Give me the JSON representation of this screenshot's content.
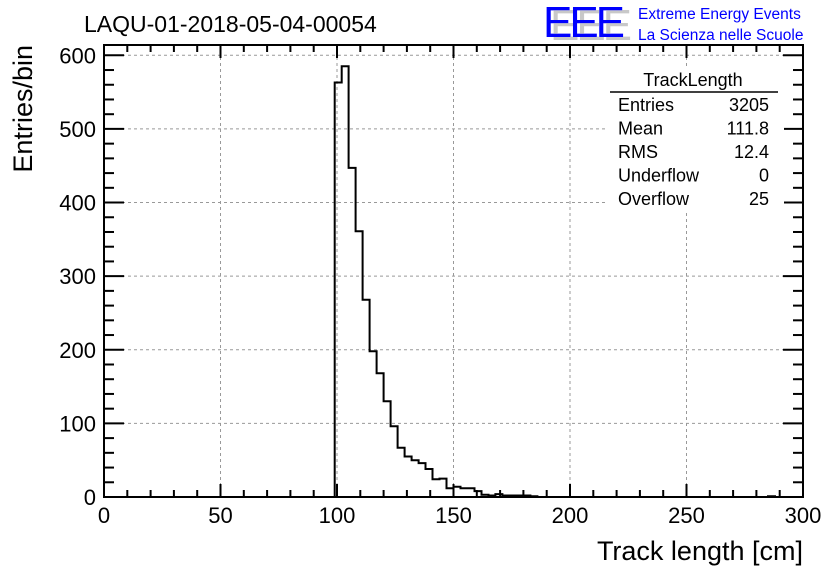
{
  "chart_data": {
    "type": "bar",
    "title": "LAQU-01-2018-05-04-00054",
    "xlabel": "Track length [cm]",
    "ylabel": "Entries/bin",
    "xlim": [
      0,
      300
    ],
    "ylim": [
      0,
      614
    ],
    "bin_width": 3,
    "grid": true,
    "xticks": [
      0,
      50,
      100,
      150,
      200,
      250,
      300
    ],
    "yticks": [
      0,
      100,
      200,
      300,
      400,
      500,
      600
    ],
    "bins": [
      {
        "x": 99,
        "y": 563
      },
      {
        "x": 102,
        "y": 585
      },
      {
        "x": 105,
        "y": 447
      },
      {
        "x": 108,
        "y": 361
      },
      {
        "x": 111,
        "y": 268
      },
      {
        "x": 114,
        "y": 198
      },
      {
        "x": 117,
        "y": 168
      },
      {
        "x": 120,
        "y": 130
      },
      {
        "x": 123,
        "y": 96
      },
      {
        "x": 126,
        "y": 67
      },
      {
        "x": 129,
        "y": 55
      },
      {
        "x": 132,
        "y": 50
      },
      {
        "x": 135,
        "y": 46
      },
      {
        "x": 138,
        "y": 38
      },
      {
        "x": 141,
        "y": 24
      },
      {
        "x": 144,
        "y": 25
      },
      {
        "x": 147,
        "y": 12
      },
      {
        "x": 150,
        "y": 14
      },
      {
        "x": 153,
        "y": 12
      },
      {
        "x": 156,
        "y": 12
      },
      {
        "x": 159,
        "y": 8
      },
      {
        "x": 162,
        "y": 3
      },
      {
        "x": 165,
        "y": 2
      },
      {
        "x": 168,
        "y": 4
      },
      {
        "x": 171,
        "y": 2
      },
      {
        "x": 174,
        "y": 2
      },
      {
        "x": 177,
        "y": 2
      },
      {
        "x": 180,
        "y": 2
      },
      {
        "x": 183,
        "y": 1
      },
      {
        "x": 285,
        "y": 1
      }
    ]
  },
  "stats": {
    "name": "TrackLength",
    "rows": [
      {
        "label": "Entries",
        "value": "3205"
      },
      {
        "label": "Mean",
        "value": "111.8"
      },
      {
        "label": "RMS",
        "value": "12.4"
      },
      {
        "label": "Underflow",
        "value": "0"
      },
      {
        "label": "Overflow",
        "value": "25"
      }
    ]
  },
  "logo": {
    "mark": "EEE",
    "line1": "Extreme Energy Events",
    "line2": "La Scienza nelle Scuole",
    "color": "#0000ff"
  }
}
